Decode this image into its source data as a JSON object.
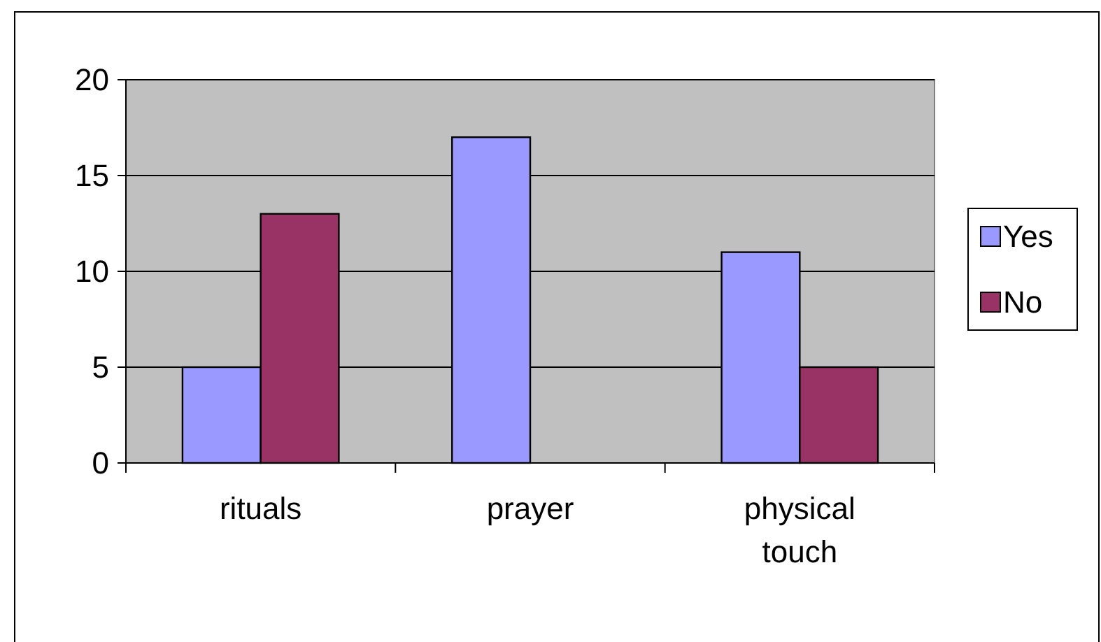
{
  "chart_data": {
    "type": "bar",
    "categories": [
      "rituals",
      "prayer",
      "physical touch"
    ],
    "series": [
      {
        "name": "Yes",
        "color": "#9999ff",
        "values": [
          5,
          17,
          11
        ]
      },
      {
        "name": "No",
        "color": "#993366",
        "values": [
          13,
          null,
          5
        ]
      }
    ],
    "ylim": [
      0,
      20
    ],
    "yticks": [
      0,
      5,
      10,
      15,
      20
    ],
    "grid": "y",
    "legend": "right"
  }
}
